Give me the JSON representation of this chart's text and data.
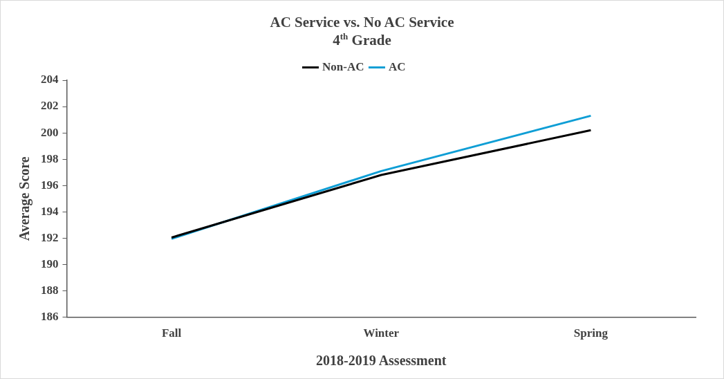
{
  "chart_data": {
    "type": "line",
    "title": "AC Service vs. No AC Service\n4$^{th}$ Grade",
    "xlabel": "2018-2019 Assessment",
    "ylabel": "Average Score",
    "categories": [
      "Fall",
      "Winter",
      "Spring"
    ],
    "series": [
      {
        "name": "Non-AC",
        "color": "#000000",
        "values": [
          192.05,
          196.8,
          200.2
        ]
      },
      {
        "name": "AC",
        "color": "#0f9ed5",
        "values": [
          191.95,
          197.1,
          201.3
        ]
      }
    ],
    "ylim": [
      186,
      204
    ],
    "yticks": [
      186,
      188,
      190,
      192,
      194,
      196,
      198,
      200,
      202,
      204
    ],
    "grid": false,
    "legend": "top",
    "marker": "none",
    "line_style": "solid"
  }
}
